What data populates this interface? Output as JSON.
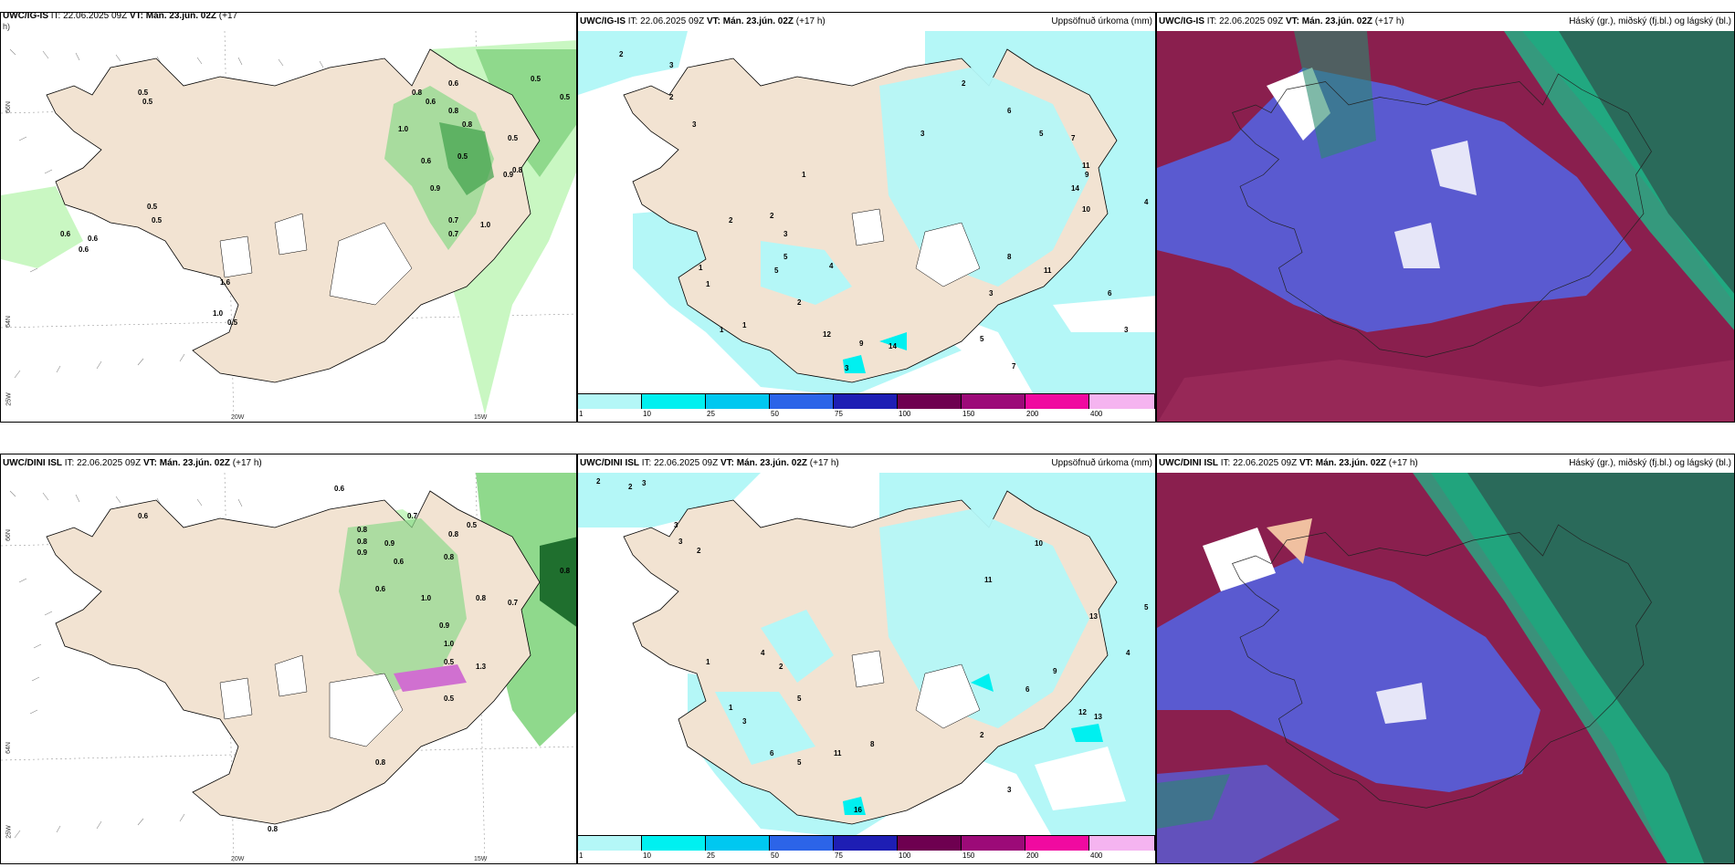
{
  "panels": [
    {
      "id": "p1",
      "model": "UWC/IG-IS",
      "it_label": "IT:",
      "it": "22.06.2025 09Z",
      "vt_label": "VT:",
      "vt": "Mán. 23.jún. 02Z",
      "lead": "(+17",
      "lead2": "h)",
      "right": ""
    },
    {
      "id": "p2",
      "model": "UWC/IG-IS",
      "it_label": "IT:",
      "it": "22.06.2025 09Z",
      "vt_label": "VT:",
      "vt": "Mán. 23.jún. 02Z",
      "lead": "(+17 h)",
      "right": "Uppsöfnuð úrkoma (mm)"
    },
    {
      "id": "p3",
      "model": "UWC/IG-IS",
      "it_label": "IT:",
      "it": "22.06.2025 09Z",
      "vt_label": "VT:",
      "vt": "Mán. 23.jún. 02Z",
      "lead": "(+17 h)",
      "right": "Háský (gr.), miðský (fj.bl.) og lágský (bl.)"
    },
    {
      "id": "p4",
      "model": "UWC/DINI ISL",
      "it_label": "IT:",
      "it": "22.06.2025 09Z",
      "vt_label": "VT:",
      "vt": "Mán. 23.jún. 02Z",
      "lead": "(+17 h)",
      "right": ""
    },
    {
      "id": "p5",
      "model": "UWC/DINI ISL",
      "it_label": "IT:",
      "it": "22.06.2025 09Z",
      "vt_label": "VT:",
      "vt": "Mán. 23.jún. 02Z",
      "lead": "(+17 h)",
      "right": "Uppsöfnuð úrkoma (mm)"
    },
    {
      "id": "p6",
      "model": "UWC/DINI ISL",
      "it_label": "IT:",
      "it": "22.06.2025 09Z",
      "vt_label": "VT:",
      "vt": "Mán. 23.jún. 02Z",
      "lead": "(+17 h)",
      "right": "Háský (gr.), miðský (fj.bl.) og lágský (bl.)"
    }
  ],
  "axes": {
    "lat66": "66N",
    "lat64": "64N",
    "lon25": "25W",
    "lon20": "20W",
    "lon15": "15W"
  },
  "colorbar": {
    "labels": [
      "1",
      "10",
      "25",
      "50",
      "75",
      "100",
      "150",
      "200",
      "400"
    ],
    "colors": [
      "#b4f7f7",
      "#00f0f0",
      "#00c8f0",
      "#2c64e8",
      "#1e1eb4",
      "#6e0050",
      "#9c0a78",
      "#f00aa0",
      "#f5b4f0"
    ]
  },
  "colors": {
    "land": "#f2e3d2",
    "rain_light": "#c9f7c2",
    "rain_mid": "#8fd98c",
    "rain_dark": "#3f9f4a",
    "precip": "#b4f7f7",
    "cloud_high": "#8a1f4e",
    "cloud_mid": "#5a5ad0",
    "cloud_low": "#2a8a6e"
  },
  "p1_labels": [
    "0.5",
    "0.5",
    "0.8",
    "0.6",
    "0.6",
    "0.5",
    "0.5",
    "0.8",
    "0.8",
    "1.0",
    "0.5",
    "0.5",
    "0.8",
    "0.5",
    "0.6",
    "0.9",
    "0.7",
    "0.7",
    "1.0",
    "0.6",
    "1.6",
    "1.0",
    "0.5",
    "0.9",
    "0.5",
    "0.6",
    "0.6"
  ],
  "p2_labels": [
    "2",
    "3",
    "2",
    "3",
    "1",
    "2",
    "1",
    "2",
    "3",
    "4",
    "1",
    "5",
    "2",
    "1",
    "12",
    "14",
    "9",
    "3",
    "5",
    "3",
    "2",
    "6",
    "5",
    "7",
    "9",
    "11",
    "14",
    "10",
    "4",
    "6",
    "8",
    "11",
    "7",
    "3",
    "1",
    "3",
    "5"
  ],
  "p4_labels": [
    "0.6",
    "0.6",
    "0.8",
    "0.8",
    "0.9",
    "0.6",
    "0.7",
    "0.9",
    "0.8",
    "0.5",
    "0.8",
    "0.6",
    "1.0",
    "0.9",
    "1.0",
    "0.5",
    "0.8",
    "0.7",
    "0.8",
    "1.3",
    "0.5",
    "0.8",
    "0.8"
  ],
  "p5_labels": [
    "2",
    "2",
    "3",
    "3",
    "3",
    "2",
    "1",
    "4",
    "2",
    "5",
    "1",
    "3",
    "6",
    "5",
    "11",
    "16",
    "8",
    "10",
    "11",
    "13",
    "12",
    "13",
    "9",
    "6",
    "2",
    "4",
    "5",
    "3"
  ]
}
